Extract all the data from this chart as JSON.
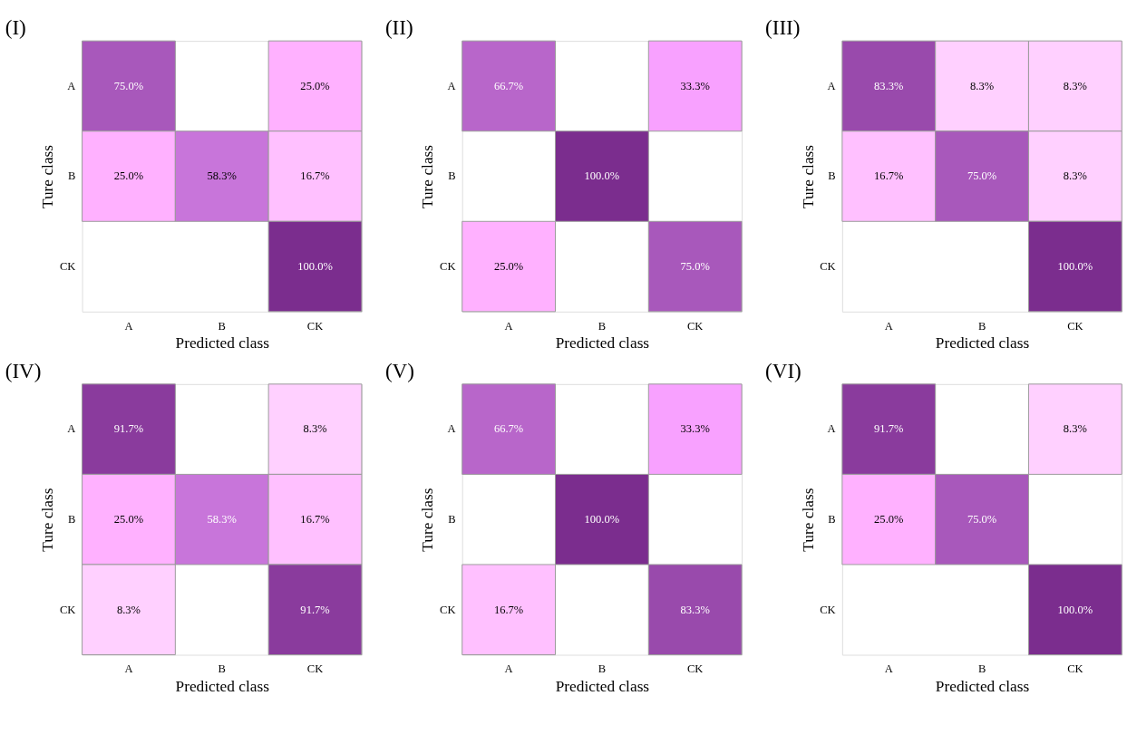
{
  "chart_data": [
    {
      "type": "heatmap",
      "title": "(I)",
      "xlabel": "Predicted class",
      "ylabel": "Ture class",
      "categories": [
        "A",
        "B",
        "CK"
      ],
      "y_categories": [
        "A",
        "B",
        "CK"
      ],
      "data_labels": true,
      "cells": [
        [
          75.0,
          null,
          25.0
        ],
        [
          25.0,
          58.3,
          16.7
        ],
        [
          null,
          null,
          100.0
        ]
      ],
      "cell_labels": [
        [
          "75.0%",
          null,
          "25.0%"
        ],
        [
          "25.0%",
          "58.3%",
          "16.7%"
        ],
        [
          null,
          null,
          "100.0%"
        ]
      ]
    },
    {
      "type": "heatmap",
      "title": "(II)",
      "xlabel": "Predicted class",
      "ylabel": "Ture class",
      "categories": [
        "A",
        "B",
        "CK"
      ],
      "y_categories": [
        "A",
        "B",
        "CK"
      ],
      "data_labels": true,
      "cells": [
        [
          66.7,
          null,
          33.3
        ],
        [
          null,
          100.0,
          null
        ],
        [
          25.0,
          null,
          75.0
        ]
      ],
      "cell_labels": [
        [
          "66.7%",
          null,
          "33.3%"
        ],
        [
          null,
          "100.0%",
          null
        ],
        [
          "25.0%",
          null,
          "75.0%"
        ]
      ]
    },
    {
      "type": "heatmap",
      "title": "(III)",
      "xlabel": "Predicted class",
      "ylabel": "Ture class",
      "categories": [
        "A",
        "B",
        "CK"
      ],
      "y_categories": [
        "A",
        "B",
        "CK"
      ],
      "data_labels": true,
      "cells": [
        [
          83.3,
          8.3,
          8.3
        ],
        [
          16.7,
          75.0,
          8.3
        ],
        [
          null,
          null,
          100.0
        ]
      ],
      "cell_labels": [
        [
          "83.3%",
          "8.3%",
          "8.3%"
        ],
        [
          "16.7%",
          "75.0%",
          "8.3%"
        ],
        [
          null,
          null,
          "100.0%"
        ]
      ]
    },
    {
      "type": "heatmap",
      "title": "(IV)",
      "xlabel": "Predicted class",
      "ylabel": "Ture class",
      "categories": [
        "A",
        "B",
        "CK"
      ],
      "y_categories": [
        "A",
        "B",
        "CK"
      ],
      "data_labels": true,
      "cells": [
        [
          91.7,
          null,
          8.3
        ],
        [
          25.0,
          58.3,
          16.7
        ],
        [
          8.3,
          null,
          91.7
        ]
      ],
      "cell_labels": [
        [
          "91.7%",
          null,
          "8.3%"
        ],
        [
          "25.0%",
          "58.3%",
          "16.7%"
        ],
        [
          "8.3%",
          null,
          "91.7%"
        ]
      ]
    },
    {
      "type": "heatmap",
      "title": "(V)",
      "xlabel": "Predicted class",
      "ylabel": "Ture class",
      "categories": [
        "A",
        "B",
        "CK"
      ],
      "y_categories": [
        "A",
        "B",
        "CK"
      ],
      "data_labels": true,
      "cells": [
        [
          66.7,
          null,
          33.3
        ],
        [
          null,
          100.0,
          null
        ],
        [
          16.7,
          null,
          83.3
        ]
      ],
      "cell_labels": [
        [
          "66.7%",
          null,
          "33.3%"
        ],
        [
          null,
          "100.0%",
          null
        ],
        [
          "16.7%",
          null,
          "83.3%"
        ]
      ]
    },
    {
      "type": "heatmap",
      "title": "(VI)",
      "xlabel": "Predicted class",
      "ylabel": "Ture class",
      "categories": [
        "A",
        "B",
        "CK"
      ],
      "y_categories": [
        "A",
        "B",
        "CK"
      ],
      "data_labels": true,
      "cells": [
        [
          91.7,
          null,
          8.3
        ],
        [
          25.0,
          75.0,
          null
        ],
        [
          null,
          null,
          100.0
        ]
      ],
      "cell_labels": [
        [
          "91.7%",
          null,
          "8.3%"
        ],
        [
          "25.0%",
          "75.0%",
          null
        ],
        [
          null,
          null,
          "100.0%"
        ]
      ]
    }
  ]
}
